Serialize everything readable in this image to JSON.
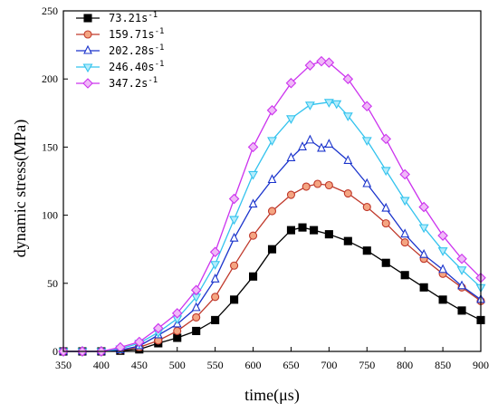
{
  "chart_data": {
    "type": "line",
    "xlabel": "time(μs)",
    "ylabel": "dynamic stress(MPa)",
    "xlim": [
      350,
      900
    ],
    "ylim": [
      0,
      250
    ],
    "xticks": [
      350,
      400,
      450,
      500,
      550,
      600,
      650,
      700,
      750,
      800,
      850,
      900
    ],
    "yticks": [
      0,
      50,
      100,
      150,
      200,
      250
    ],
    "x_tick_labels": [
      "350",
      "400",
      "450",
      "500",
      "550",
      "600",
      "650",
      "700",
      "750",
      "800",
      "850",
      "900"
    ],
    "y_tick_labels": [
      "0",
      "50",
      "100",
      "150",
      "200",
      "250"
    ],
    "grid": false,
    "legend_position": "top-left",
    "series": [
      {
        "name": "73.21s",
        "name_sup": "-1",
        "color": "#000000",
        "marker": "square",
        "points": [
          [
            350,
            0
          ],
          [
            375,
            0
          ],
          [
            400,
            0
          ],
          [
            425,
            0.5
          ],
          [
            450,
            1.5
          ],
          [
            475,
            6
          ],
          [
            500,
            10
          ],
          [
            525,
            15
          ],
          [
            550,
            23
          ],
          [
            575,
            38
          ],
          [
            600,
            55
          ],
          [
            625,
            75
          ],
          [
            650,
            89
          ],
          [
            665,
            91
          ],
          [
            680,
            89
          ],
          [
            700,
            86
          ],
          [
            725,
            81
          ],
          [
            750,
            74
          ],
          [
            775,
            65
          ],
          [
            800,
            56
          ],
          [
            825,
            47
          ],
          [
            850,
            38
          ],
          [
            875,
            30
          ],
          [
            900,
            23
          ]
        ]
      },
      {
        "name": "159.71s",
        "name_sup": "-1",
        "color": "#c0392b",
        "marker": "circle",
        "points": [
          [
            350,
            0
          ],
          [
            375,
            0
          ],
          [
            400,
            0
          ],
          [
            425,
            1
          ],
          [
            450,
            3
          ],
          [
            475,
            8
          ],
          [
            500,
            15
          ],
          [
            525,
            25
          ],
          [
            550,
            40
          ],
          [
            575,
            63
          ],
          [
            600,
            85
          ],
          [
            625,
            103
          ],
          [
            650,
            115
          ],
          [
            670,
            121
          ],
          [
            685,
            123
          ],
          [
            700,
            122
          ],
          [
            725,
            116
          ],
          [
            750,
            106
          ],
          [
            775,
            94
          ],
          [
            800,
            80
          ],
          [
            825,
            68
          ],
          [
            850,
            57
          ],
          [
            875,
            47
          ],
          [
            900,
            37
          ]
        ]
      },
      {
        "name": "202.28s",
        "name_sup": "-1",
        "color": "#1a33cc",
        "marker": "triangle-up",
        "points": [
          [
            350,
            0
          ],
          [
            375,
            0
          ],
          [
            400,
            0
          ],
          [
            425,
            1
          ],
          [
            450,
            4
          ],
          [
            475,
            12
          ],
          [
            500,
            20
          ],
          [
            525,
            32
          ],
          [
            550,
            53
          ],
          [
            575,
            83
          ],
          [
            600,
            108
          ],
          [
            625,
            126
          ],
          [
            650,
            142
          ],
          [
            665,
            150
          ],
          [
            675,
            155
          ],
          [
            690,
            149
          ],
          [
            700,
            152
          ],
          [
            725,
            140
          ],
          [
            750,
            123
          ],
          [
            775,
            105
          ],
          [
            800,
            86
          ],
          [
            825,
            71
          ],
          [
            850,
            60
          ],
          [
            875,
            48
          ],
          [
            900,
            38
          ]
        ]
      },
      {
        "name": "246.40s",
        "name_sup": "-1",
        "color": "#33c3ee",
        "marker": "triangle-down",
        "points": [
          [
            350,
            0
          ],
          [
            375,
            0
          ],
          [
            400,
            0
          ],
          [
            425,
            2
          ],
          [
            450,
            6
          ],
          [
            475,
            14
          ],
          [
            500,
            24
          ],
          [
            525,
            40
          ],
          [
            550,
            64
          ],
          [
            575,
            97
          ],
          [
            600,
            130
          ],
          [
            625,
            155
          ],
          [
            650,
            171
          ],
          [
            675,
            181
          ],
          [
            700,
            183
          ],
          [
            710,
            182
          ],
          [
            725,
            173
          ],
          [
            750,
            155
          ],
          [
            775,
            133
          ],
          [
            800,
            111
          ],
          [
            825,
            91
          ],
          [
            850,
            74
          ],
          [
            875,
            60
          ],
          [
            900,
            47
          ]
        ]
      },
      {
        "name": "347.2s",
        "name_sup": "-1",
        "color": "#cc33ee",
        "marker": "diamond",
        "points": [
          [
            350,
            0
          ],
          [
            375,
            0
          ],
          [
            400,
            0
          ],
          [
            425,
            3
          ],
          [
            450,
            7
          ],
          [
            475,
            17
          ],
          [
            500,
            28
          ],
          [
            525,
            45
          ],
          [
            550,
            73
          ],
          [
            575,
            112
          ],
          [
            600,
            150
          ],
          [
            625,
            177
          ],
          [
            650,
            197
          ],
          [
            675,
            210
          ],
          [
            690,
            213
          ],
          [
            700,
            212
          ],
          [
            725,
            200
          ],
          [
            750,
            180
          ],
          [
            775,
            156
          ],
          [
            800,
            130
          ],
          [
            825,
            106
          ],
          [
            850,
            85
          ],
          [
            875,
            68
          ],
          [
            900,
            54
          ]
        ]
      }
    ]
  }
}
